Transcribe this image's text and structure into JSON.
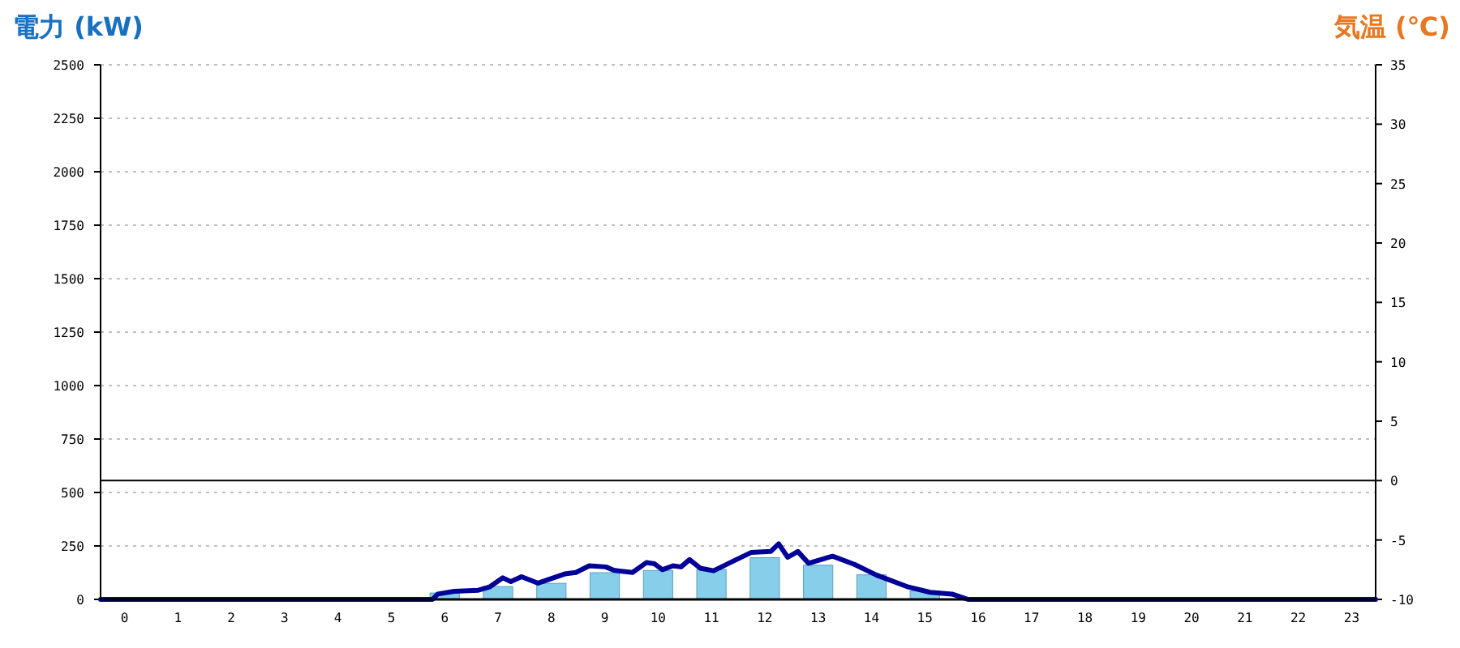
{
  "chart_data": {
    "type": "bar",
    "ylabel": "電力 (kW)",
    "y2label": "気温 (℃)",
    "x": [
      0,
      1,
      2,
      3,
      4,
      5,
      6,
      7,
      8,
      9,
      10,
      11,
      12,
      13,
      14,
      15,
      16,
      17,
      18,
      19,
      20,
      21,
      22,
      23
    ],
    "xlim": [
      -0.45,
      23.45
    ],
    "xticks": [
      0,
      1,
      2,
      3,
      4,
      5,
      6,
      7,
      8,
      9,
      10,
      11,
      12,
      13,
      14,
      15,
      16,
      17,
      18,
      19,
      20,
      21,
      22,
      23
    ],
    "ylim": [
      0,
      2500
    ],
    "yticks": [
      0,
      250,
      500,
      750,
      1000,
      1250,
      1500,
      1750,
      2000,
      2250,
      2500
    ],
    "y2lim": [
      -10,
      35
    ],
    "y2ticks": [
      -10,
      -5,
      0,
      5,
      10,
      15,
      20,
      25,
      30,
      35
    ],
    "grid": "y",
    "ref_lines": [
      {
        "axis": "y2",
        "value": 0,
        "color": "#000000"
      }
    ],
    "series": [
      {
        "color": "#87ceeb",
        "values": [
          0,
          0,
          0,
          0,
          0,
          0,
          30,
          60,
          75,
          125,
          135,
          140,
          195,
          160,
          115,
          40,
          0,
          0,
          0,
          0,
          0,
          0,
          0,
          0
        ]
      },
      {
        "type": "line",
        "color": "#000099",
        "x": [
          -0.45,
          4.65,
          5.77,
          5.87,
          6.18,
          6.63,
          6.84,
          7.09,
          7.24,
          7.44,
          7.75,
          8.25,
          8.46,
          8.71,
          9.02,
          9.17,
          9.52,
          9.78,
          9.93,
          10.08,
          10.28,
          10.43,
          10.59,
          10.79,
          11.04,
          11.35,
          11.75,
          12.11,
          12.26,
          12.43,
          12.62,
          12.82,
          13.27,
          13.68,
          14.09,
          14.69,
          15.1,
          15.51,
          15.81,
          23.45
        ],
        "values": [
          0,
          0,
          0,
          25,
          38,
          43,
          58,
          101,
          83,
          106,
          76,
          119,
          126,
          157,
          152,
          136,
          126,
          172,
          167,
          139,
          157,
          152,
          186,
          146,
          134,
          172,
          220,
          224,
          260,
          197,
          224,
          169,
          202,
          164,
          114,
          58,
          33,
          25,
          0,
          0
        ]
      }
    ]
  }
}
